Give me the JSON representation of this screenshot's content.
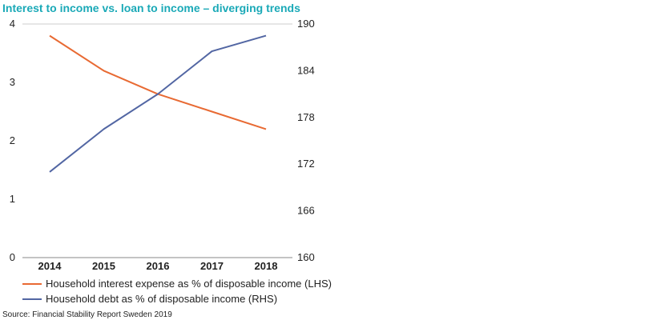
{
  "colors": {
    "title": "#1aa9b7",
    "lhs_series": "#e86a33",
    "rhs_series": "#5266a3",
    "axis": "#888888",
    "grid": "#cccccc"
  },
  "chart_data": {
    "type": "line",
    "title": "Interest to income vs. loan to income – diverging trends",
    "categories": [
      "2014",
      "2015",
      "2016",
      "2017",
      "2018"
    ],
    "y_left": {
      "ylim": [
        0,
        4
      ],
      "ticks": [
        "0",
        "1",
        "2",
        "3",
        "4"
      ]
    },
    "y_right": {
      "ylim": [
        160,
        190
      ],
      "ticks": [
        "160",
        "166",
        "172",
        "178",
        "184",
        "190"
      ]
    },
    "grid": false,
    "legend_position": "bottom-left",
    "series": [
      {
        "name": "Household interest expense as % of disposable income (LHS)",
        "axis": "left",
        "values": [
          3.8,
          3.2,
          2.8,
          2.5,
          2.2
        ]
      },
      {
        "name": "Household debt as % of disposable income (RHS)",
        "axis": "right",
        "values": [
          171,
          176.5,
          181,
          186.5,
          188.5
        ]
      }
    ],
    "source": "Source: Financial Stability Report Sweden 2019"
  }
}
